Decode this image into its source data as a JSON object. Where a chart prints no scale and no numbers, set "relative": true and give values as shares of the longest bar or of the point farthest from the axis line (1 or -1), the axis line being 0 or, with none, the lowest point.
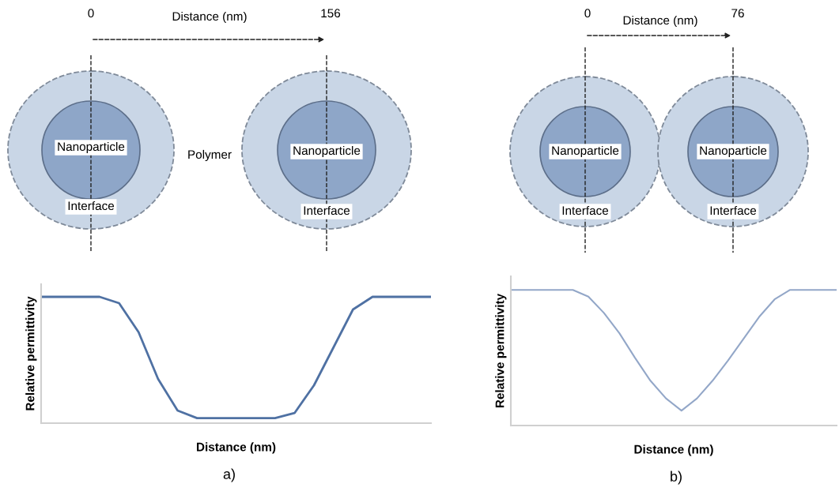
{
  "chart_data": [
    {
      "type": "line",
      "categories": [
        null,
        null,
        null,
        null,
        null,
        null,
        null,
        null,
        null,
        null,
        null,
        null,
        null,
        null,
        null,
        null,
        null,
        null,
        null,
        null,
        null
      ],
      "relative": true,
      "xlabel": "Distance (nm)",
      "ylabel": "Relative permittivity",
      "series": [
        {
          "color": "#4f71a3",
          "values": [
            1,
            1,
            1,
            1,
            0.95,
            0.72,
            0.35,
            0.1,
            0.04,
            0.04,
            0.04,
            0.04,
            0.04,
            0.08,
            0.3,
            0.6,
            0.9,
            1,
            1,
            1,
            1
          ]
        }
      ],
      "annotations": [
        "0",
        "Distance (nm)",
        "156",
        "Nanoparticle",
        "Polymer",
        "Nanoparticle",
        "Interface",
        "Interface",
        "a)"
      ]
    },
    {
      "type": "line",
      "categories": [
        null,
        null,
        null,
        null,
        null,
        null,
        null,
        null,
        null,
        null,
        null,
        null,
        null,
        null,
        null,
        null,
        null,
        null,
        null,
        null,
        null,
        null
      ],
      "relative": true,
      "xlabel": "Distance (nm)",
      "ylabel": "Relative permittivity",
      "series": [
        {
          "color": "#93a7c8",
          "values": [
            1,
            1,
            1,
            1,
            1,
            0.95,
            0.83,
            0.68,
            0.5,
            0.33,
            0.2,
            0.11,
            0.2,
            0.33,
            0.48,
            0.64,
            0.8,
            0.93,
            1,
            1,
            1,
            1
          ]
        }
      ],
      "annotations": [
        "0",
        "Distance (nm)",
        "76",
        "Nanoparticle",
        "Nanoparticle",
        "Interface",
        "Interface",
        "b)"
      ]
    }
  ]
}
